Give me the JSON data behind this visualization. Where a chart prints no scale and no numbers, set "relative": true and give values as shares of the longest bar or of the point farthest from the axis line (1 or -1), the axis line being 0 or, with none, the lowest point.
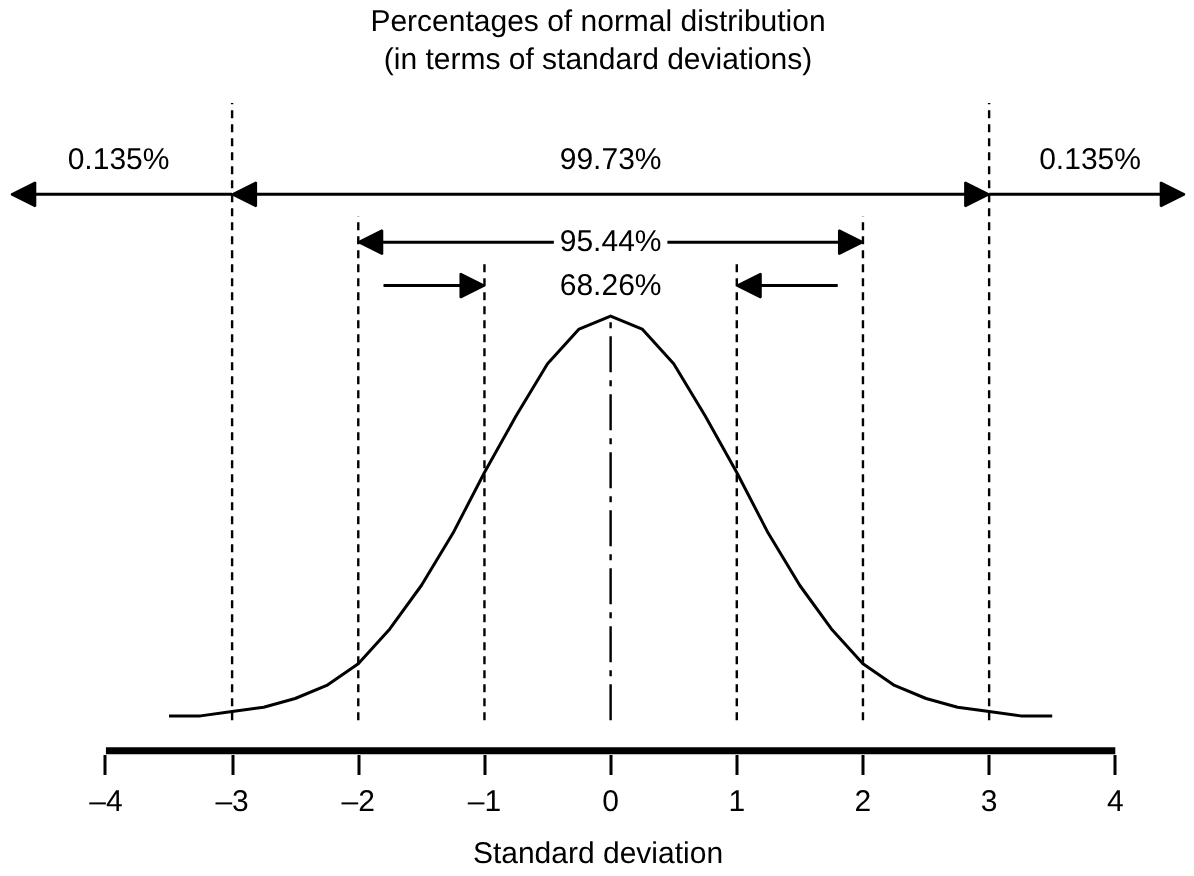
{
  "chart_data": {
    "type": "line",
    "relative": true,
    "title": "Percentages of normal distribution",
    "subtitle": "(in terms of standard deviations)",
    "xlabel": "Standard deviation",
    "x": [
      -3.5,
      -3.25,
      -3,
      -2.75,
      -2.5,
      -2.25,
      -2,
      -1.75,
      -1.5,
      -1.25,
      -1,
      -0.75,
      -0.5,
      -0.25,
      0,
      0.25,
      0.5,
      0.75,
      1,
      1.25,
      1.5,
      1.75,
      2,
      2.25,
      2.5,
      2.75,
      3,
      3.25,
      3.5
    ],
    "series": [
      {
        "color": "#000000",
        "values": [
          0.08,
          0.08,
          0.09,
          0.1,
          0.12,
          0.15,
          0.2,
          0.28,
          0.38,
          0.5,
          0.64,
          0.77,
          0.89,
          0.97,
          1,
          0.97,
          0.89,
          0.77,
          0.64,
          0.5,
          0.38,
          0.28,
          0.2,
          0.15,
          0.12,
          0.1,
          0.09,
          0.08,
          0.08
        ]
      }
    ],
    "xlim": [
      -4,
      4
    ],
    "xticks": [
      {
        "value": -4,
        "label": "–4"
      },
      {
        "value": -3,
        "label": "–3"
      },
      {
        "value": -2,
        "label": "–2"
      },
      {
        "value": -1,
        "label": "–1"
      },
      0,
      1,
      2,
      3,
      4
    ],
    "ref_lines": [
      {
        "axis": "x",
        "value": -3,
        "line_style": "dashed"
      },
      {
        "axis": "x",
        "value": -2,
        "line_style": "dashed"
      },
      {
        "axis": "x",
        "value": -1,
        "line_style": "dashed"
      },
      {
        "axis": "x",
        "value": 0,
        "line_style": "dashdot"
      },
      {
        "axis": "x",
        "value": 1,
        "line_style": "dashed"
      },
      {
        "axis": "x",
        "value": 2,
        "line_style": "dashed"
      },
      {
        "axis": "x",
        "value": 3,
        "line_style": "dashed"
      }
    ],
    "annotations": [
      "0.135%",
      "99.73%",
      "0.135%",
      "95.44%",
      "68.26%"
    ],
    "grid": false,
    "marker": "none",
    "line_style": "solid"
  }
}
